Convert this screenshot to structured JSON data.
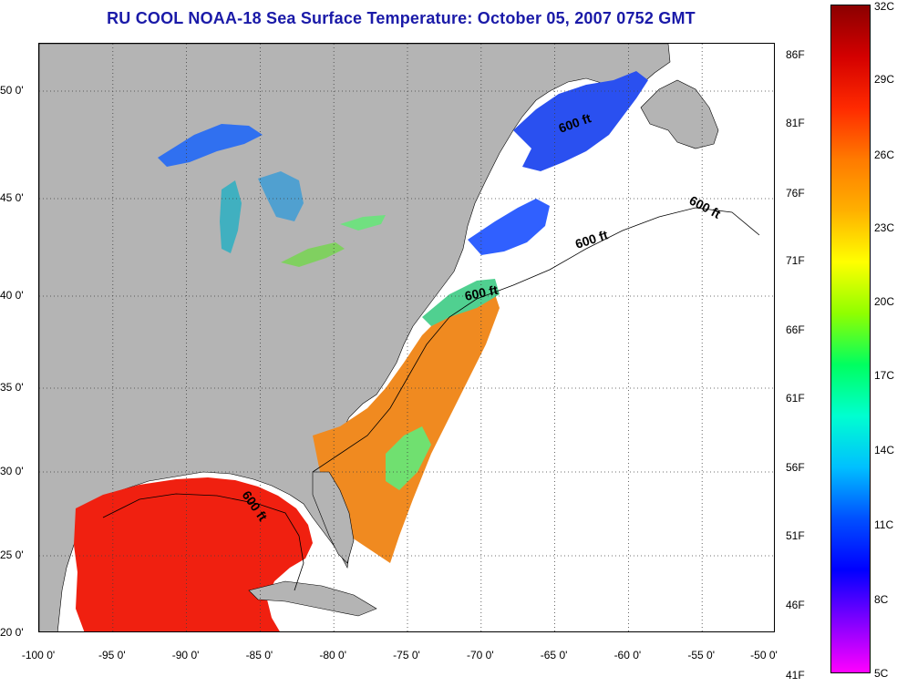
{
  "title": "RU COOL  NOAA-18  Sea Surface Temperature:  October 05, 2007 0752 GMT",
  "map": {
    "land_color": "#b4b4b4",
    "no_data_color": "#ffffff",
    "isobath_label": "600 ft",
    "lon_ticks": [
      "-100 0'",
      "-95 0'",
      "-90 0'",
      "-85 0'",
      "-80 0'",
      "-75 0'",
      "-70 0'",
      "-65 0'",
      "-60 0'",
      "-55 0'",
      "-50 0'"
    ],
    "lat_ticks": [
      "20 0'",
      "25 0'",
      "30 0'",
      "35 0'",
      "40 0'",
      "45 0'",
      "50 0'"
    ]
  },
  "colorbar": {
    "fahrenheit_labels": [
      "86F",
      "81F",
      "76F",
      "71F",
      "66F",
      "61F",
      "56F",
      "51F",
      "46F",
      "41F"
    ],
    "celsius_labels": [
      "32C",
      "29C",
      "26C",
      "23C",
      "20C",
      "17C",
      "14C",
      "11C",
      "8C",
      "5C"
    ],
    "gradient_top_to_bottom": [
      "#8b0000",
      "#d40000",
      "#ff2a00",
      "#ff7a00",
      "#ffb000",
      "#ffff00",
      "#90ff00",
      "#00ff60",
      "#00ffd0",
      "#00c0ff",
      "#0050ff",
      "#0000ff",
      "#8000ff",
      "#ff00ff"
    ]
  }
}
